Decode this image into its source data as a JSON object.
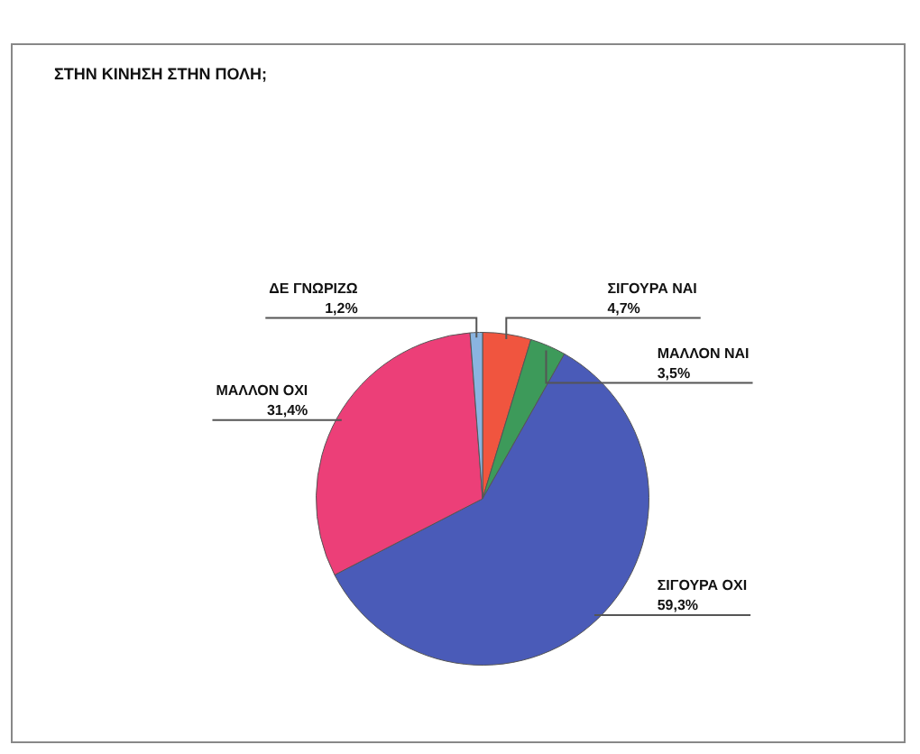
{
  "chart_data": {
    "type": "pie",
    "title": "ΣΤΗΝ ΚΙΝΗΣΗ ΣΤΗΝ ΠΟΛΗ;",
    "categories": [
      "ΣΙΓΟΥΡΑ ΝΑΙ",
      "ΜΑΛΛΟΝ ΝΑΙ",
      "ΣΙΓΟΥΡΑ ΟΧΙ",
      "ΜΑΛΛΟΝ ΟΧΙ",
      "ΔΕ ΓΝΩΡΙΖΩ"
    ],
    "values": [
      4.7,
      3.5,
      59.3,
      31.4,
      1.2
    ],
    "value_labels": [
      "4,7%",
      "3,5%",
      "59,3%",
      "31,4%",
      "1,2%"
    ],
    "colors": [
      "#f0553f",
      "#3d9a5a",
      "#4a5bb8",
      "#ec3f78",
      "#8ab4e0"
    ],
    "legend": false
  }
}
